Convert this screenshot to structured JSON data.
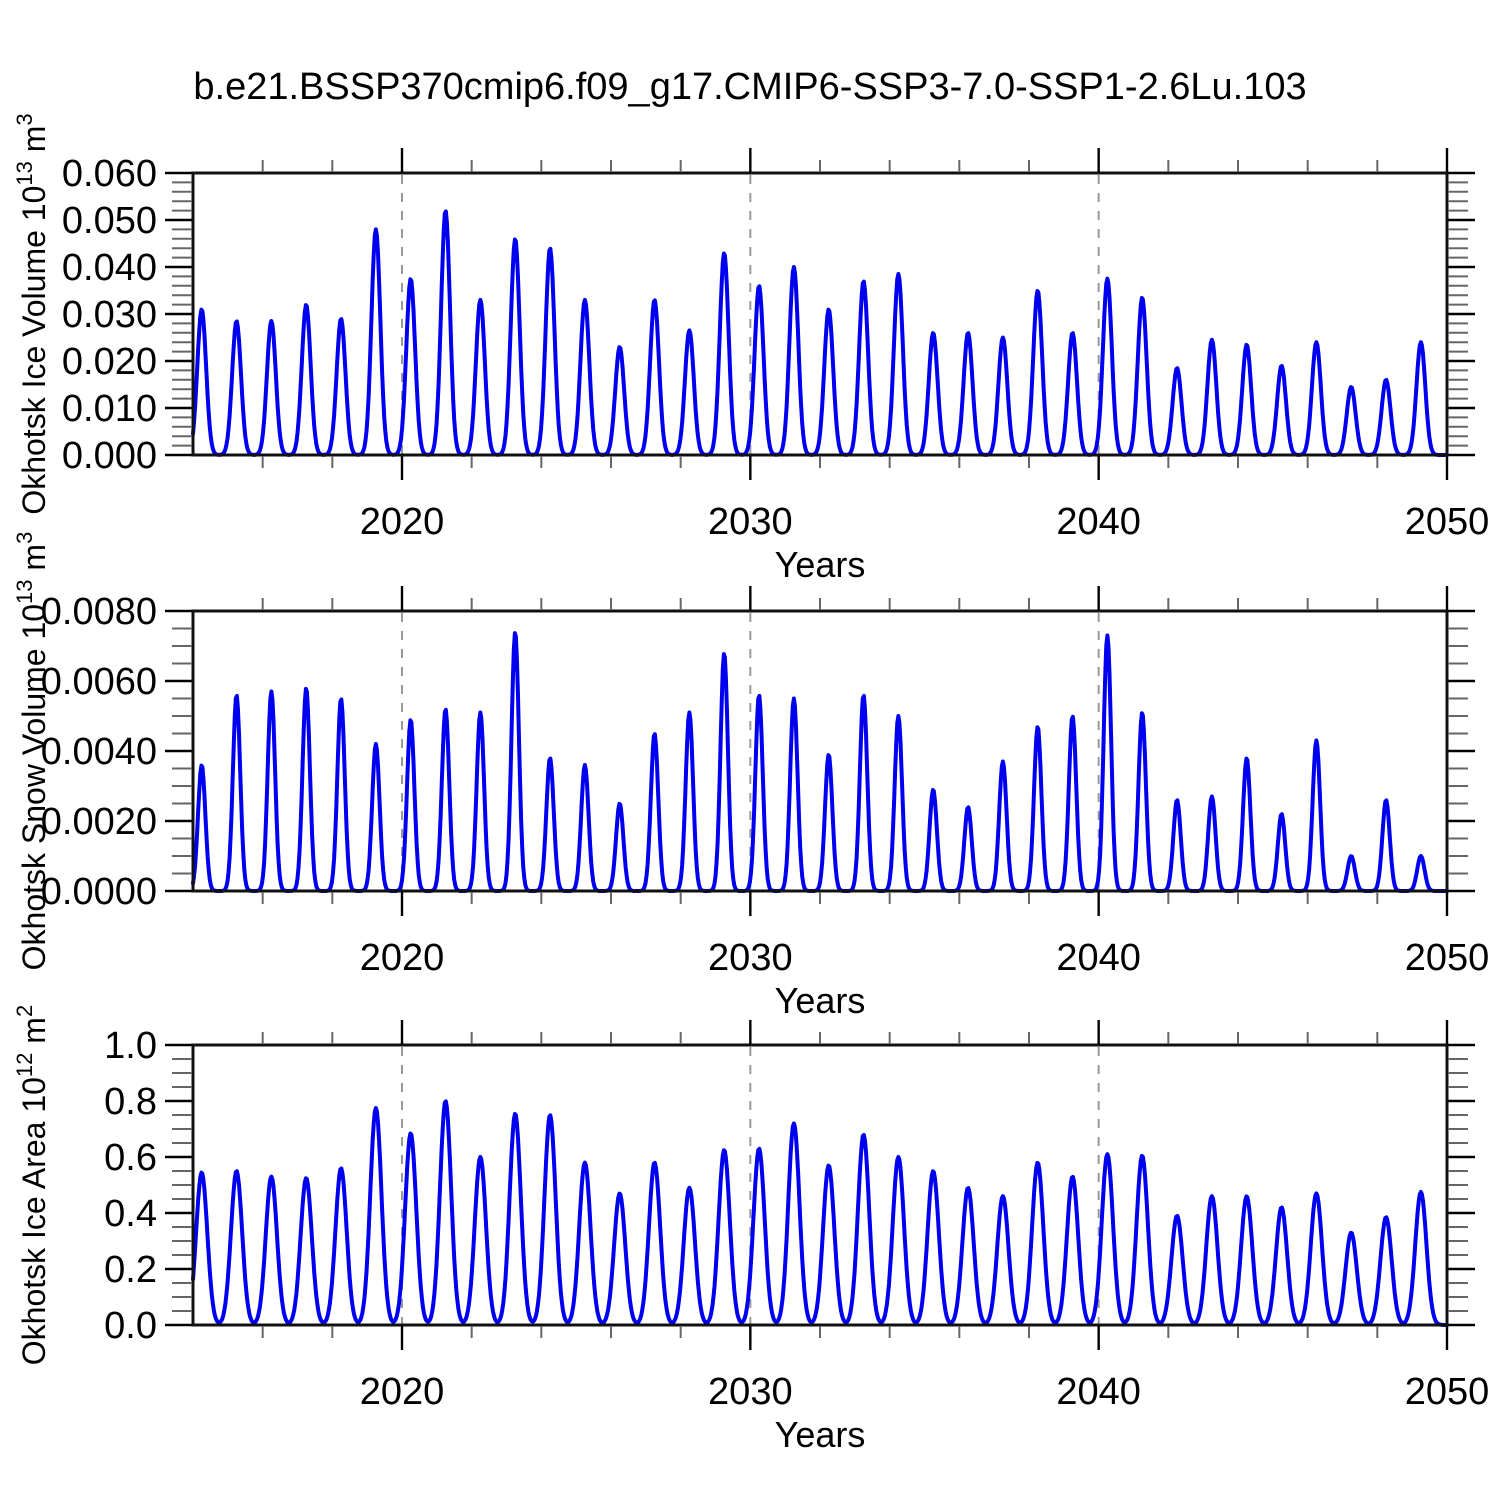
{
  "title": "b.e21.BSSP370cmip6.f09_g17.CMIP6-SSP3-7.0-SSP1-2.6Lu.103",
  "colors": {
    "line": "#0000f0",
    "grid_dashed": "#999999",
    "frame": "#111111",
    "minor_tick": "#666666",
    "major_tick": "#000000",
    "background": "#ffffff"
  },
  "years": [
    2014,
    2015,
    2016,
    2017,
    2018,
    2019,
    2020,
    2021,
    2022,
    2023,
    2024,
    2025,
    2026,
    2027,
    2028,
    2029,
    2030,
    2031,
    2032,
    2033,
    2034,
    2035,
    2036,
    2037,
    2038,
    2039,
    2040,
    2041,
    2042,
    2043,
    2044,
    2045,
    2046,
    2047,
    2048,
    2049
  ],
  "chart_data": [
    {
      "id": "ice-volume",
      "type": "line",
      "ylabel": "Okhotsk Ice Volume 10^13 m^3",
      "xlabel": "Years",
      "xlim": [
        2014,
        2050
      ],
      "ylim": [
        0,
        0.06
      ],
      "x_major_ticks": [
        2020,
        2030,
        2040,
        2050
      ],
      "x_minor_step_years": 2,
      "gridline_years": [
        2020,
        2030,
        2040
      ],
      "y_major_ticks": [
        0,
        0.01,
        0.02,
        0.03,
        0.04,
        0.05,
        0.06
      ],
      "y_tick_labels": [
        "0.000",
        "0.010",
        "0.020",
        "0.030",
        "0.040",
        "0.050",
        "0.060"
      ],
      "y_minor_step": 0.002,
      "series_note": "Monthly seasonal cycle: sharp winter peak each year, ~zero each summer. Values are the annual winter peak heights.",
      "annual_peaks": [
        0.031,
        0.0285,
        0.0285,
        0.032,
        0.029,
        0.048,
        0.0375,
        0.052,
        0.033,
        0.046,
        0.044,
        0.033,
        0.023,
        0.033,
        0.0265,
        0.043,
        0.036,
        0.04,
        0.031,
        0.037,
        0.0385,
        0.026,
        0.026,
        0.025,
        0.035,
        0.026,
        0.0375,
        0.0335,
        0.0185,
        0.0245,
        0.0235,
        0.019,
        0.024,
        0.0145,
        0.016,
        0.024
      ],
      "peak_time_of_year": 0.25,
      "bump_width_years": 0.18,
      "bump_exponent": 1.0
    },
    {
      "id": "snow-volume",
      "type": "line",
      "ylabel": "Okhotsk Snow Volume 10^13 m^3",
      "xlabel": "Years",
      "xlim": [
        2014,
        2050
      ],
      "ylim": [
        0,
        0.008
      ],
      "x_major_ticks": [
        2020,
        2030,
        2040,
        2050
      ],
      "x_minor_step_years": 2,
      "gridline_years": [
        2020,
        2030,
        2040
      ],
      "y_major_ticks": [
        0,
        0.002,
        0.004,
        0.006,
        0.008
      ],
      "y_tick_labels": [
        "0.0000",
        "0.0020",
        "0.0040",
        "0.0060",
        "0.0080"
      ],
      "y_minor_step": 0.0005,
      "series_note": "Monthly seasonal cycle: sharp winter peak each year, ~zero each summer. Values are the annual winter peak heights.",
      "annual_peaks": [
        0.0036,
        0.0056,
        0.0057,
        0.0058,
        0.0055,
        0.0042,
        0.0049,
        0.0052,
        0.0051,
        0.0074,
        0.0038,
        0.0036,
        0.0025,
        0.0045,
        0.0051,
        0.0068,
        0.0056,
        0.0055,
        0.0039,
        0.0056,
        0.005,
        0.0029,
        0.0024,
        0.0037,
        0.0047,
        0.005,
        0.0073,
        0.0051,
        0.0026,
        0.0027,
        0.0038,
        0.0022,
        0.0043,
        0.001,
        0.0026,
        0.001
      ],
      "peak_time_of_year": 0.25,
      "bump_width_years": 0.15,
      "bump_exponent": 1.0
    },
    {
      "id": "ice-area",
      "type": "line",
      "ylabel": "Okhotsk Ice Area 10^12 m^2",
      "xlabel": "Years",
      "xlim": [
        2014,
        2050
      ],
      "ylim": [
        0,
        1.0
      ],
      "x_major_ticks": [
        2020,
        2030,
        2040,
        2050
      ],
      "x_minor_step_years": 2,
      "gridline_years": [
        2020,
        2030,
        2040
      ],
      "y_major_ticks": [
        0,
        0.2,
        0.4,
        0.6,
        0.8,
        1.0
      ],
      "y_tick_labels": [
        "0.0",
        "0.2",
        "0.4",
        "0.6",
        "0.8",
        "1.0"
      ],
      "y_minor_step": 0.05,
      "series_note": "Monthly seasonal cycle: broad winter plateau peak each year, ~zero each summer. Values are the annual winter peak heights.",
      "annual_peaks": [
        0.545,
        0.55,
        0.53,
        0.525,
        0.56,
        0.775,
        0.685,
        0.8,
        0.6,
        0.755,
        0.75,
        0.58,
        0.47,
        0.58,
        0.49,
        0.625,
        0.63,
        0.72,
        0.57,
        0.68,
        0.6,
        0.55,
        0.49,
        0.46,
        0.58,
        0.53,
        0.61,
        0.605,
        0.39,
        0.46,
        0.46,
        0.42,
        0.47,
        0.33,
        0.385,
        0.475
      ],
      "peak_time_of_year": 0.25,
      "bump_width_years": 0.21,
      "bump_exponent": 0.85
    }
  ]
}
